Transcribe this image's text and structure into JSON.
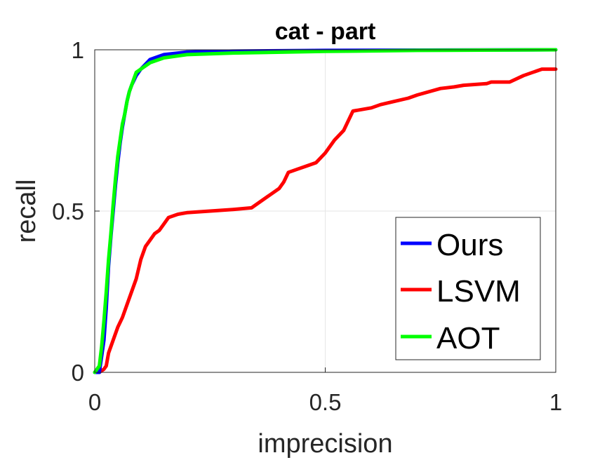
{
  "chart_data": {
    "type": "line",
    "title": "cat - part",
    "xlabel": "imprecision",
    "ylabel": "recall",
    "xlim": [
      0,
      1
    ],
    "ylim": [
      0,
      1
    ],
    "xticks": [
      "0",
      "0.5",
      "1"
    ],
    "yticks": [
      "0",
      "0.5",
      "1"
    ],
    "grid": true,
    "legend": {
      "position": "bottom-right"
    },
    "series": [
      {
        "name": "Ours",
        "color": "#0000ff",
        "x": [
          0,
          0.01,
          0.02,
          0.025,
          0.03,
          0.035,
          0.04,
          0.045,
          0.05,
          0.055,
          0.06,
          0.065,
          0.07,
          0.075,
          0.08,
          0.09,
          0.1,
          0.12,
          0.15,
          0.2,
          0.3,
          0.5,
          0.7,
          1.0
        ],
        "y": [
          0,
          0.0,
          0.1,
          0.2,
          0.33,
          0.42,
          0.5,
          0.58,
          0.65,
          0.71,
          0.76,
          0.8,
          0.84,
          0.87,
          0.89,
          0.92,
          0.94,
          0.97,
          0.985,
          0.993,
          0.996,
          0.998,
          0.999,
          1.0
        ]
      },
      {
        "name": "LSVM",
        "color": "#ff0000",
        "x": [
          0,
          0.01,
          0.02,
          0.025,
          0.03,
          0.04,
          0.05,
          0.06,
          0.07,
          0.08,
          0.09,
          0.1,
          0.11,
          0.12,
          0.13,
          0.14,
          0.15,
          0.16,
          0.18,
          0.2,
          0.25,
          0.3,
          0.34,
          0.36,
          0.38,
          0.4,
          0.41,
          0.42,
          0.44,
          0.46,
          0.48,
          0.5,
          0.52,
          0.54,
          0.55,
          0.56,
          0.6,
          0.62,
          0.65,
          0.68,
          0.7,
          0.75,
          0.78,
          0.8,
          0.85,
          0.86,
          0.87,
          0.9,
          0.93,
          0.95,
          0.97,
          1.0
        ],
        "y": [
          0,
          0.0,
          0.01,
          0.02,
          0.06,
          0.1,
          0.14,
          0.17,
          0.21,
          0.25,
          0.29,
          0.35,
          0.39,
          0.41,
          0.43,
          0.44,
          0.46,
          0.48,
          0.49,
          0.495,
          0.5,
          0.505,
          0.51,
          0.53,
          0.55,
          0.57,
          0.59,
          0.62,
          0.63,
          0.64,
          0.65,
          0.68,
          0.72,
          0.75,
          0.78,
          0.81,
          0.82,
          0.83,
          0.84,
          0.85,
          0.86,
          0.88,
          0.885,
          0.89,
          0.895,
          0.9,
          0.9,
          0.9,
          0.92,
          0.93,
          0.94,
          0.94
        ]
      },
      {
        "name": "AOT",
        "color": "#00ff00",
        "x": [
          0,
          0.01,
          0.015,
          0.02,
          0.025,
          0.03,
          0.035,
          0.04,
          0.045,
          0.05,
          0.055,
          0.06,
          0.065,
          0.07,
          0.075,
          0.08,
          0.085,
          0.09,
          0.1,
          0.12,
          0.15,
          0.2,
          0.3,
          0.5,
          0.7,
          1.0
        ],
        "y": [
          0,
          0.02,
          0.08,
          0.16,
          0.25,
          0.35,
          0.43,
          0.52,
          0.6,
          0.67,
          0.72,
          0.77,
          0.8,
          0.84,
          0.87,
          0.89,
          0.91,
          0.93,
          0.94,
          0.96,
          0.975,
          0.985,
          0.99,
          0.995,
          0.998,
          1.0
        ]
      }
    ]
  }
}
